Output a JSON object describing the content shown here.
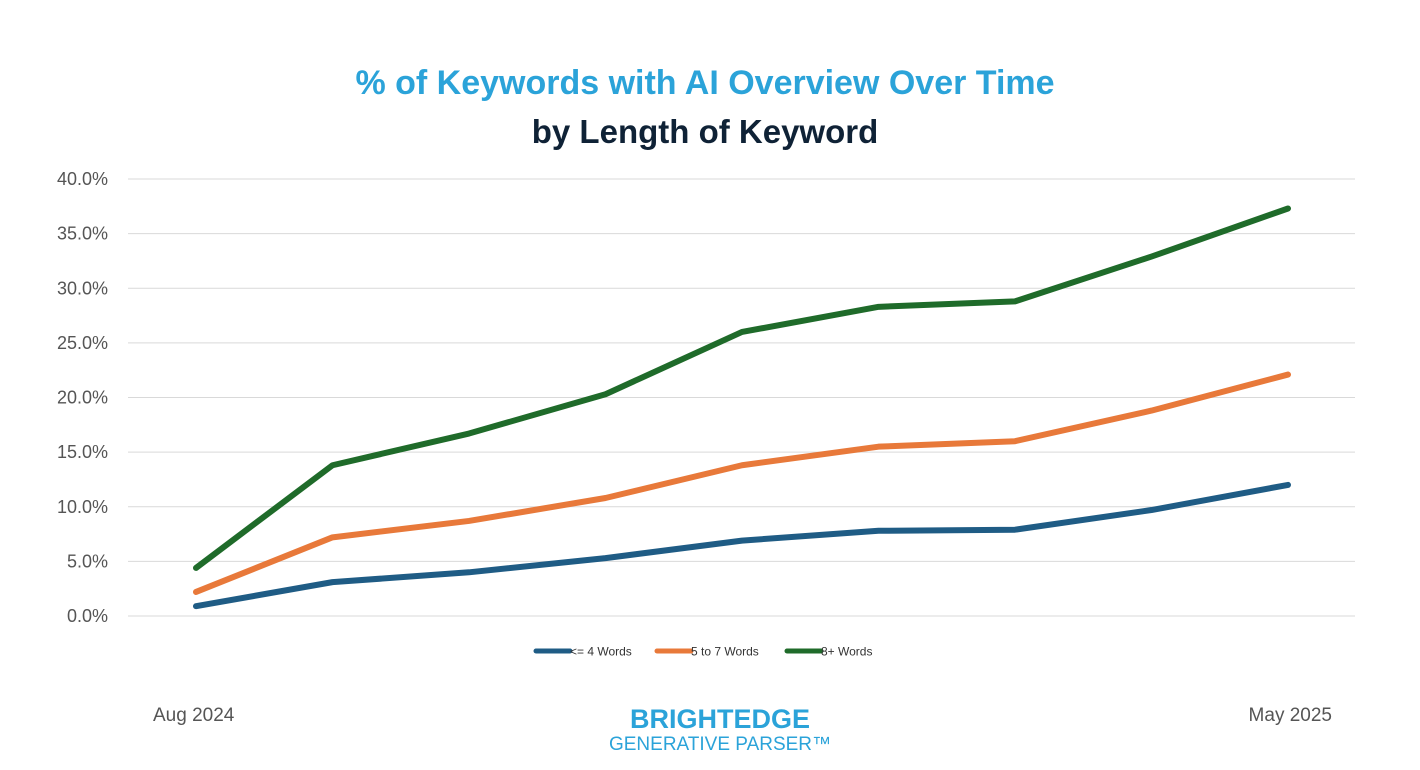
{
  "chart_data": {
    "type": "line",
    "title": "% of Keywords with AI Overview Over Time",
    "subtitle": "by Length of Keyword",
    "x": [
      1,
      2,
      3,
      4,
      5,
      6,
      7,
      8,
      9
    ],
    "ylim": [
      0,
      40
    ],
    "yticks": [
      "0.0%",
      "5.0%",
      "10.0%",
      "15.0%",
      "20.0%",
      "25.0%",
      "30.0%",
      "35.0%",
      "40.0%"
    ],
    "grid": true,
    "legend_position": "bottom-center",
    "series": [
      {
        "name": "<= 4 Words",
        "color": "#1f5c85",
        "values": [
          0.9,
          3.1,
          4.0,
          5.3,
          6.9,
          7.8,
          7.9,
          9.7,
          12.0
        ]
      },
      {
        "name": "5 to 7 Words",
        "color": "#e8793a",
        "values": [
          2.2,
          7.2,
          8.7,
          10.8,
          13.8,
          15.5,
          16.0,
          18.8,
          22.1
        ]
      },
      {
        "name": "8+ Words",
        "color": "#1f6b2a",
        "values": [
          4.4,
          13.8,
          16.7,
          20.3,
          26.0,
          28.3,
          28.8,
          32.9,
          37.3
        ]
      }
    ]
  },
  "footer": {
    "start_label": "Aug 2024",
    "end_label": "May 2025",
    "brand_name": "BRIGHTEDGE",
    "brand_sub": "GENERATIVE PARSER™"
  }
}
